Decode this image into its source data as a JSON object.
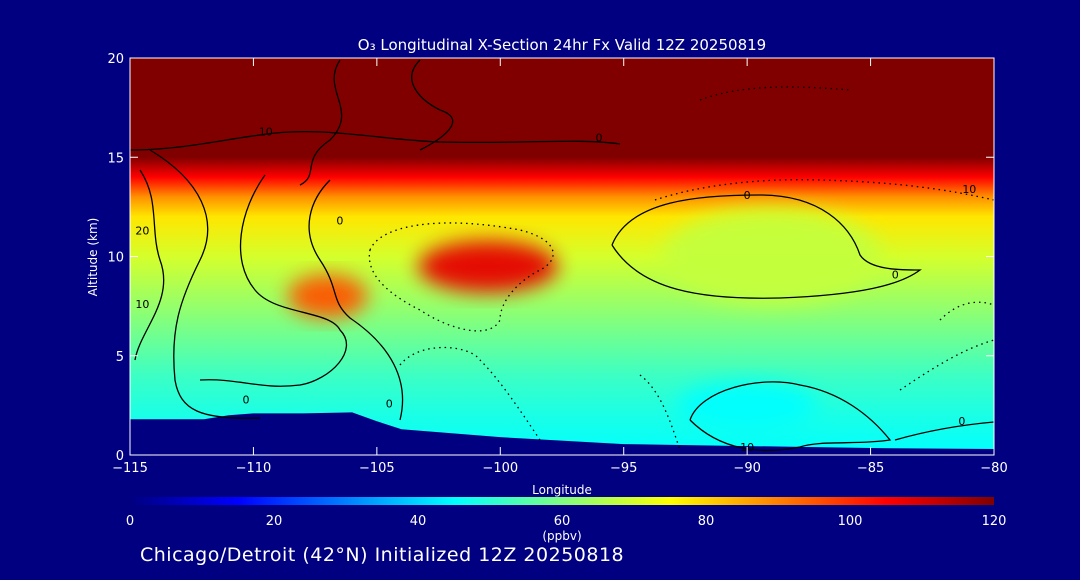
{
  "chart_data": {
    "type": "heatmap",
    "title": "O₃ Longitudinal X-Section 24hr  Fx Valid 12Z 20250819",
    "xlabel": "Longitude",
    "ylabel": "Altitude (km)",
    "xlim": [
      -115,
      -80
    ],
    "ylim": [
      0,
      20
    ],
    "xticks": [
      -115,
      -110,
      -105,
      -100,
      -95,
      -90,
      -85,
      -80
    ],
    "xtick_labels": [
      "−115",
      "−110",
      "−105",
      "−100",
      "−95",
      "−90",
      "−85",
      "−80"
    ],
    "yticks": [
      0,
      5,
      10,
      15,
      20
    ],
    "ytick_labels": [
      "0",
      "5",
      "10",
      "15",
      "20"
    ],
    "colorbar": {
      "label": "(ppbv)",
      "range": [
        0,
        120
      ],
      "ticks": [
        0,
        20,
        40,
        60,
        80,
        100,
        120
      ],
      "colors": [
        "#000080",
        "#0000ff",
        "#0080ff",
        "#00ffff",
        "#80ff80",
        "#ffff00",
        "#ff8000",
        "#ff0000",
        "#800000"
      ]
    },
    "ozone_profile": {
      "altitude_km": [
        0,
        2,
        4,
        6,
        8,
        10,
        12,
        13,
        14,
        15,
        20
      ],
      "ppbv": [
        45,
        48,
        52,
        58,
        64,
        70,
        78,
        88,
        105,
        125,
        125
      ]
    },
    "features": [
      {
        "lon": -100.5,
        "alt_km": 9.5,
        "ppbv": 108
      },
      {
        "lon": -107,
        "alt_km": 8,
        "ppbv": 95
      },
      {
        "lon": -89,
        "alt_km": 10,
        "ppbv": 68
      },
      {
        "lon": -90,
        "alt_km": 2.5,
        "ppbv": 45
      }
    ],
    "terrain_km": {
      "lon": [
        -115,
        -112,
        -111,
        -110,
        -108,
        -106,
        -105,
        -104,
        -100,
        -95,
        -90,
        -85,
        -80
      ],
      "alt": [
        1.8,
        1.8,
        2.0,
        2.1,
        2.1,
        2.15,
        1.7,
        1.3,
        0.9,
        0.55,
        0.45,
        0.35,
        0.3
      ]
    },
    "contour_labels": [
      {
        "text": "10",
        "lon": -109.5,
        "alt": 16.1
      },
      {
        "text": "0",
        "lon": -96,
        "alt": 15.8
      },
      {
        "text": "20",
        "lon": -114.5,
        "alt": 11.1
      },
      {
        "text": "0",
        "lon": -106.5,
        "alt": 11.6
      },
      {
        "text": "10",
        "lon": -114.5,
        "alt": 7.4
      },
      {
        "text": "0",
        "lon": -90,
        "alt": 12.9
      },
      {
        "text": "10",
        "lon": -81,
        "alt": 13.2
      },
      {
        "text": "0",
        "lon": -84,
        "alt": 8.9
      },
      {
        "text": "0",
        "lon": -110.3,
        "alt": 2.6
      },
      {
        "text": "0",
        "lon": -104.5,
        "alt": 2.4
      },
      {
        "text": "0",
        "lon": -81.3,
        "alt": 1.5
      },
      {
        "text": "10",
        "lon": -90,
        "alt": 0.2
      }
    ]
  },
  "caption": "Chicago/Detroit (42°N) Initialized 12Z 20250818"
}
